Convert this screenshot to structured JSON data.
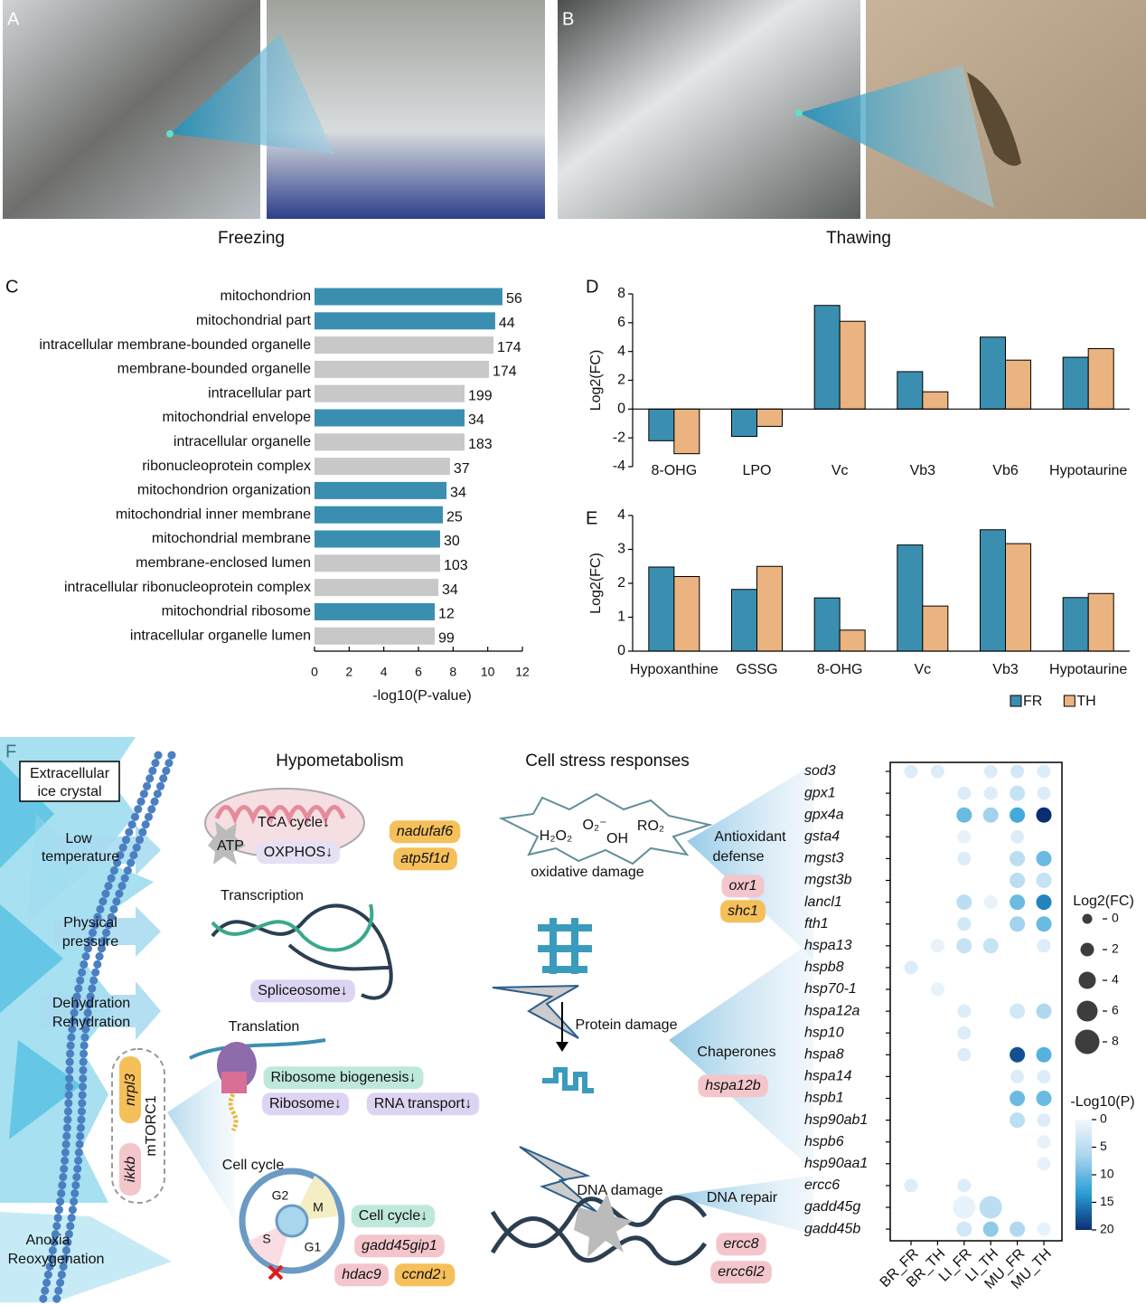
{
  "panel_labels": [
    "A",
    "B",
    "C",
    "D",
    "E",
    "F"
  ],
  "captions": [
    "Freezing",
    "Thawing"
  ],
  "chart_data": [
    {
      "type": "hbar",
      "categories": [
        "mitochondrion",
        "mitochondrial part",
        "intracellular membrane-bounded organelle",
        "membrane-bounded organelle",
        "intracellular part",
        "mitochondrial envelope",
        "intracellular organelle",
        "ribonucleoprotein complex",
        "mitochondrion organization",
        "mitochondrial inner membrane",
        "mitochondrial membrane",
        "membrane-enclosed lumen",
        "intracellular ribonucleoprotein complex",
        "mitochondrial ribosome",
        "intracellular organelle lumen"
      ],
      "values": [
        10.85,
        10.43,
        10.33,
        10.07,
        8.66,
        8.66,
        8.66,
        7.82,
        7.62,
        7.41,
        7.25,
        7.25,
        7.15,
        6.94,
        6.94
      ],
      "counts": [
        56,
        44,
        174,
        174,
        199,
        34,
        183,
        37,
        34,
        25,
        30,
        103,
        34,
        12,
        99
      ],
      "colors": [
        "#3a8fb0",
        "#3a8fb0",
        "#c8c8c8",
        "#c8c8c8",
        "#c8c8c8",
        "#3a8fb0",
        "#c8c8c8",
        "#c8c8c8",
        "#3a8fb0",
        "#3a8fb0",
        "#3a8fb0",
        "#c8c8c8",
        "#c8c8c8",
        "#3a8fb0",
        "#c8c8c8"
      ],
      "xlim": [
        0,
        12
      ],
      "xticks": [
        0,
        2,
        4,
        6,
        8,
        10,
        12
      ],
      "xlabel": "-log10(P-value)"
    },
    {
      "type": "bar",
      "categories": [
        "8-OHG",
        "LPO",
        "Vc",
        "Vb3",
        "Vb6",
        "Hypotaurine"
      ],
      "series": [
        {
          "color": "#3a8fb0",
          "values": [
            -2.2,
            -1.9,
            7.2,
            2.6,
            5.0,
            3.6
          ]
        },
        {
          "color": "#ebb37f",
          "values": [
            -3.1,
            -1.2,
            6.1,
            1.2,
            3.4,
            4.2
          ]
        }
      ],
      "ylim": [
        -4,
        8
      ],
      "yticks": [
        -4,
        -2,
        0,
        2,
        4,
        6,
        8
      ],
      "ylabel": "Log2(FC)"
    },
    {
      "type": "bar",
      "categories": [
        "Hypoxanthine",
        "GSSG",
        "8-OHG",
        "Vc",
        "Vb3",
        "Hypotaurine"
      ],
      "series": [
        {
          "name": "FR",
          "color": "#3a8fb0",
          "values": [
            2.48,
            1.82,
            1.57,
            3.13,
            3.58,
            1.58
          ]
        },
        {
          "name": "TH",
          "color": "#ebb37f",
          "values": [
            2.2,
            2.5,
            0.62,
            1.33,
            3.17,
            1.7
          ]
        }
      ],
      "ylim": [
        0,
        4
      ],
      "yticks": [
        0,
        1,
        2,
        3,
        4
      ],
      "ylabel": "Log2(FC)",
      "legend": "bottom-right"
    },
    {
      "type": "dotplot",
      "rows": [
        "sod3",
        "gpx1",
        "gpx4a",
        "gsta4",
        "mgst3",
        "mgst3b",
        "lancl1",
        "fth1",
        "hspa13",
        "hspb8",
        "hsp70-1",
        "hspa12a",
        "hsp10",
        "hspa8",
        "hspa14",
        "hspb1",
        "hsp90ab1",
        "hspb6",
        "hsp90aa1",
        "ercc6",
        "gadd45g",
        "gadd45b"
      ],
      "columns": [
        "BR_FR",
        "BR_TH",
        "LI_FR",
        "LI_TH",
        "MU_FR",
        "MU_TH"
      ],
      "size": [
        [
          2,
          2,
          null,
          2,
          2,
          2
        ],
        [
          null,
          null,
          2,
          2,
          3,
          2
        ],
        [
          null,
          null,
          3,
          3,
          3,
          3
        ],
        [
          null,
          null,
          2,
          null,
          2,
          null
        ],
        [
          null,
          null,
          2,
          null,
          3,
          3
        ],
        [
          null,
          null,
          null,
          null,
          3,
          3
        ],
        [
          null,
          null,
          3,
          2,
          3,
          3
        ],
        [
          null,
          null,
          2,
          null,
          3,
          3
        ],
        [
          null,
          2,
          3,
          3,
          null,
          2
        ],
        [
          2,
          null,
          null,
          null,
          null,
          null
        ],
        [
          null,
          2,
          null,
          null,
          null,
          null
        ],
        [
          null,
          null,
          2,
          null,
          3,
          3
        ],
        [
          null,
          null,
          2,
          null,
          null,
          null
        ],
        [
          null,
          null,
          2,
          null,
          3,
          3
        ],
        [
          null,
          null,
          null,
          null,
          2,
          2
        ],
        [
          null,
          null,
          null,
          null,
          3,
          3
        ],
        [
          null,
          null,
          null,
          null,
          3,
          2
        ],
        [
          null,
          null,
          null,
          null,
          null,
          2
        ],
        [
          null,
          null,
          null,
          null,
          null,
          2
        ],
        [
          2,
          null,
          2,
          null,
          null,
          null
        ],
        [
          null,
          null,
          7,
          7,
          null,
          null
        ],
        [
          null,
          null,
          3,
          3,
          3,
          2
        ]
      ],
      "color": [
        [
          2,
          2,
          null,
          2,
          3,
          2
        ],
        [
          null,
          null,
          2,
          2,
          4,
          2
        ],
        [
          null,
          null,
          10,
          7,
          12,
          20
        ],
        [
          null,
          null,
          1,
          null,
          2,
          null
        ],
        [
          null,
          null,
          2,
          null,
          5,
          10
        ],
        [
          null,
          null,
          null,
          null,
          5,
          4
        ],
        [
          null,
          null,
          5,
          1,
          10,
          15
        ],
        [
          null,
          null,
          3,
          null,
          7,
          10
        ],
        [
          null,
          1,
          4,
          4,
          null,
          2
        ],
        [
          2,
          null,
          null,
          null,
          null,
          null
        ],
        [
          null,
          1,
          null,
          null,
          null,
          null
        ],
        [
          null,
          null,
          2,
          null,
          3,
          6
        ],
        [
          null,
          null,
          2,
          null,
          null,
          null
        ],
        [
          null,
          null,
          2,
          null,
          18,
          11
        ],
        [
          null,
          null,
          null,
          null,
          2,
          2
        ],
        [
          null,
          null,
          null,
          null,
          10,
          10
        ],
        [
          null,
          null,
          null,
          null,
          5,
          2
        ],
        [
          null,
          null,
          null,
          null,
          null,
          1
        ],
        [
          null,
          null,
          null,
          null,
          null,
          1
        ],
        [
          2,
          null,
          2,
          null,
          null,
          null
        ],
        [
          null,
          null,
          1,
          5,
          null,
          null
        ],
        [
          null,
          null,
          3,
          8,
          6,
          1
        ]
      ],
      "size_title": "Log2(FC)",
      "size_ticks": [
        0,
        2,
        4,
        6,
        8
      ],
      "color_title": "-Log10(P)",
      "color_lim": [
        0,
        20
      ],
      "color_ticks": [
        0,
        5,
        10,
        15,
        20
      ],
      "colors": [
        "#f2f7fd",
        "#a9d5ee",
        "#2a9fd6",
        "#0a2e74"
      ]
    }
  ],
  "diagram": {
    "ice": [
      "Extracellular",
      "ice crystal"
    ],
    "stressors": [
      [
        "Low",
        "temperature"
      ],
      [
        "Physical",
        "pressure"
      ],
      [
        "Dehydration",
        "Rehydration"
      ],
      [
        "Anoxia",
        "Reoxygenation"
      ]
    ],
    "mtorc1": {
      "label": "mTORC1",
      "genes": [
        "nrpl3",
        "ikkb"
      ]
    },
    "hypometabolism": {
      "title": "Hypometabolism",
      "tca": "TCA cycle↓",
      "oxphos": "OXPHOS↓",
      "atp": "ATP",
      "genes": [
        "nadufaf6",
        "atp5f1d"
      ]
    },
    "transcription": {
      "title": "Transcription",
      "terms": [
        "Spliceosome↓"
      ]
    },
    "translation": {
      "title": "Translation",
      "terms": [
        "Ribosome biogenesis↓",
        "Ribosome↓",
        "RNA transport↓"
      ]
    },
    "cell_cycle": {
      "title": "Cell cycle",
      "phases": [
        "G2",
        "M",
        "S",
        "G1"
      ],
      "terms": [
        "Cell cycle↓"
      ],
      "genes": [
        "gadd45gip1",
        "hdac9",
        "ccnd2↓"
      ]
    },
    "stress": {
      "title": "Cell stress responses",
      "ros": [
        "H₂O₂",
        "O₂⁻",
        "OH",
        "RO₂"
      ]
    },
    "oxidative": {
      "label": "oxidative damage",
      "response": [
        "Antioxidant",
        "defense"
      ],
      "genes": [
        "oxr1",
        "shc1"
      ]
    },
    "protein": {
      "label": "Protein damage",
      "response": "Chaperones",
      "genes": [
        "hspa12b"
      ]
    },
    "dna": {
      "label": "DNA damage",
      "response": "DNA repair",
      "genes": [
        "ercc8",
        "ercc6l2"
      ]
    }
  }
}
